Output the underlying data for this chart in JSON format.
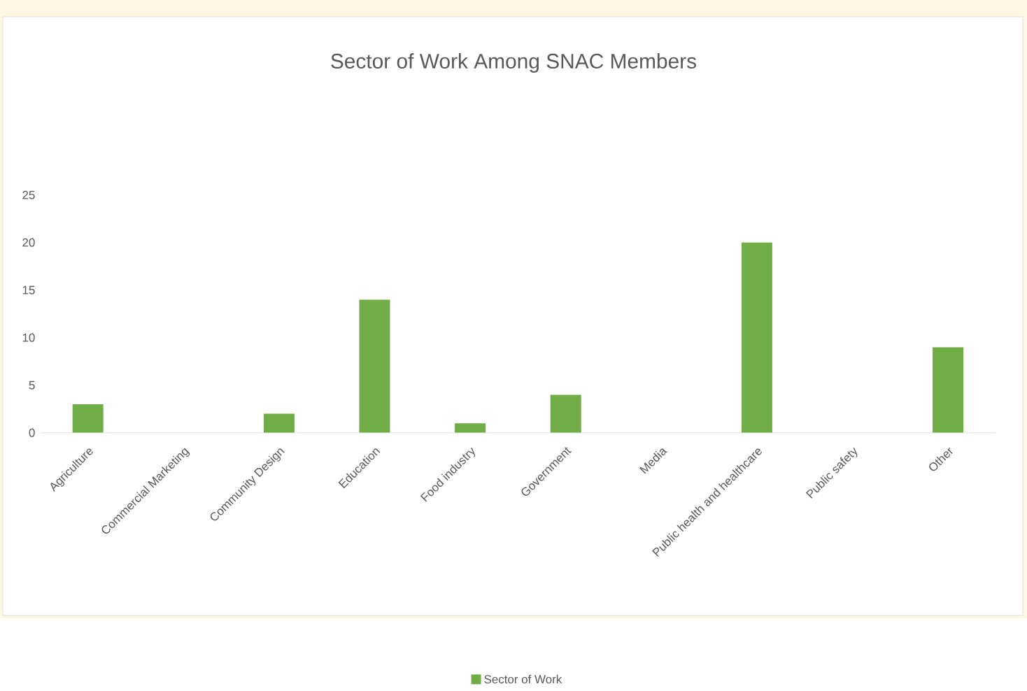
{
  "chart_data": {
    "type": "bar",
    "title": "Sector of Work Among SNAC Members",
    "categories": [
      "Agriculture",
      "Commercial Marketing",
      "Community Design",
      "Education",
      "Food industry",
      "Government",
      "Media",
      "Public health and healthcare",
      "Public safety",
      "Other"
    ],
    "series": [
      {
        "name": "Sector of Work",
        "color": "#70ad47",
        "values": [
          3,
          0,
          2,
          14,
          1,
          4,
          0,
          20,
          0,
          9
        ]
      }
    ],
    "ylim": [
      0,
      25
    ],
    "yticks": [
      0,
      5,
      10,
      15,
      20,
      25
    ],
    "legend": "bottom"
  }
}
